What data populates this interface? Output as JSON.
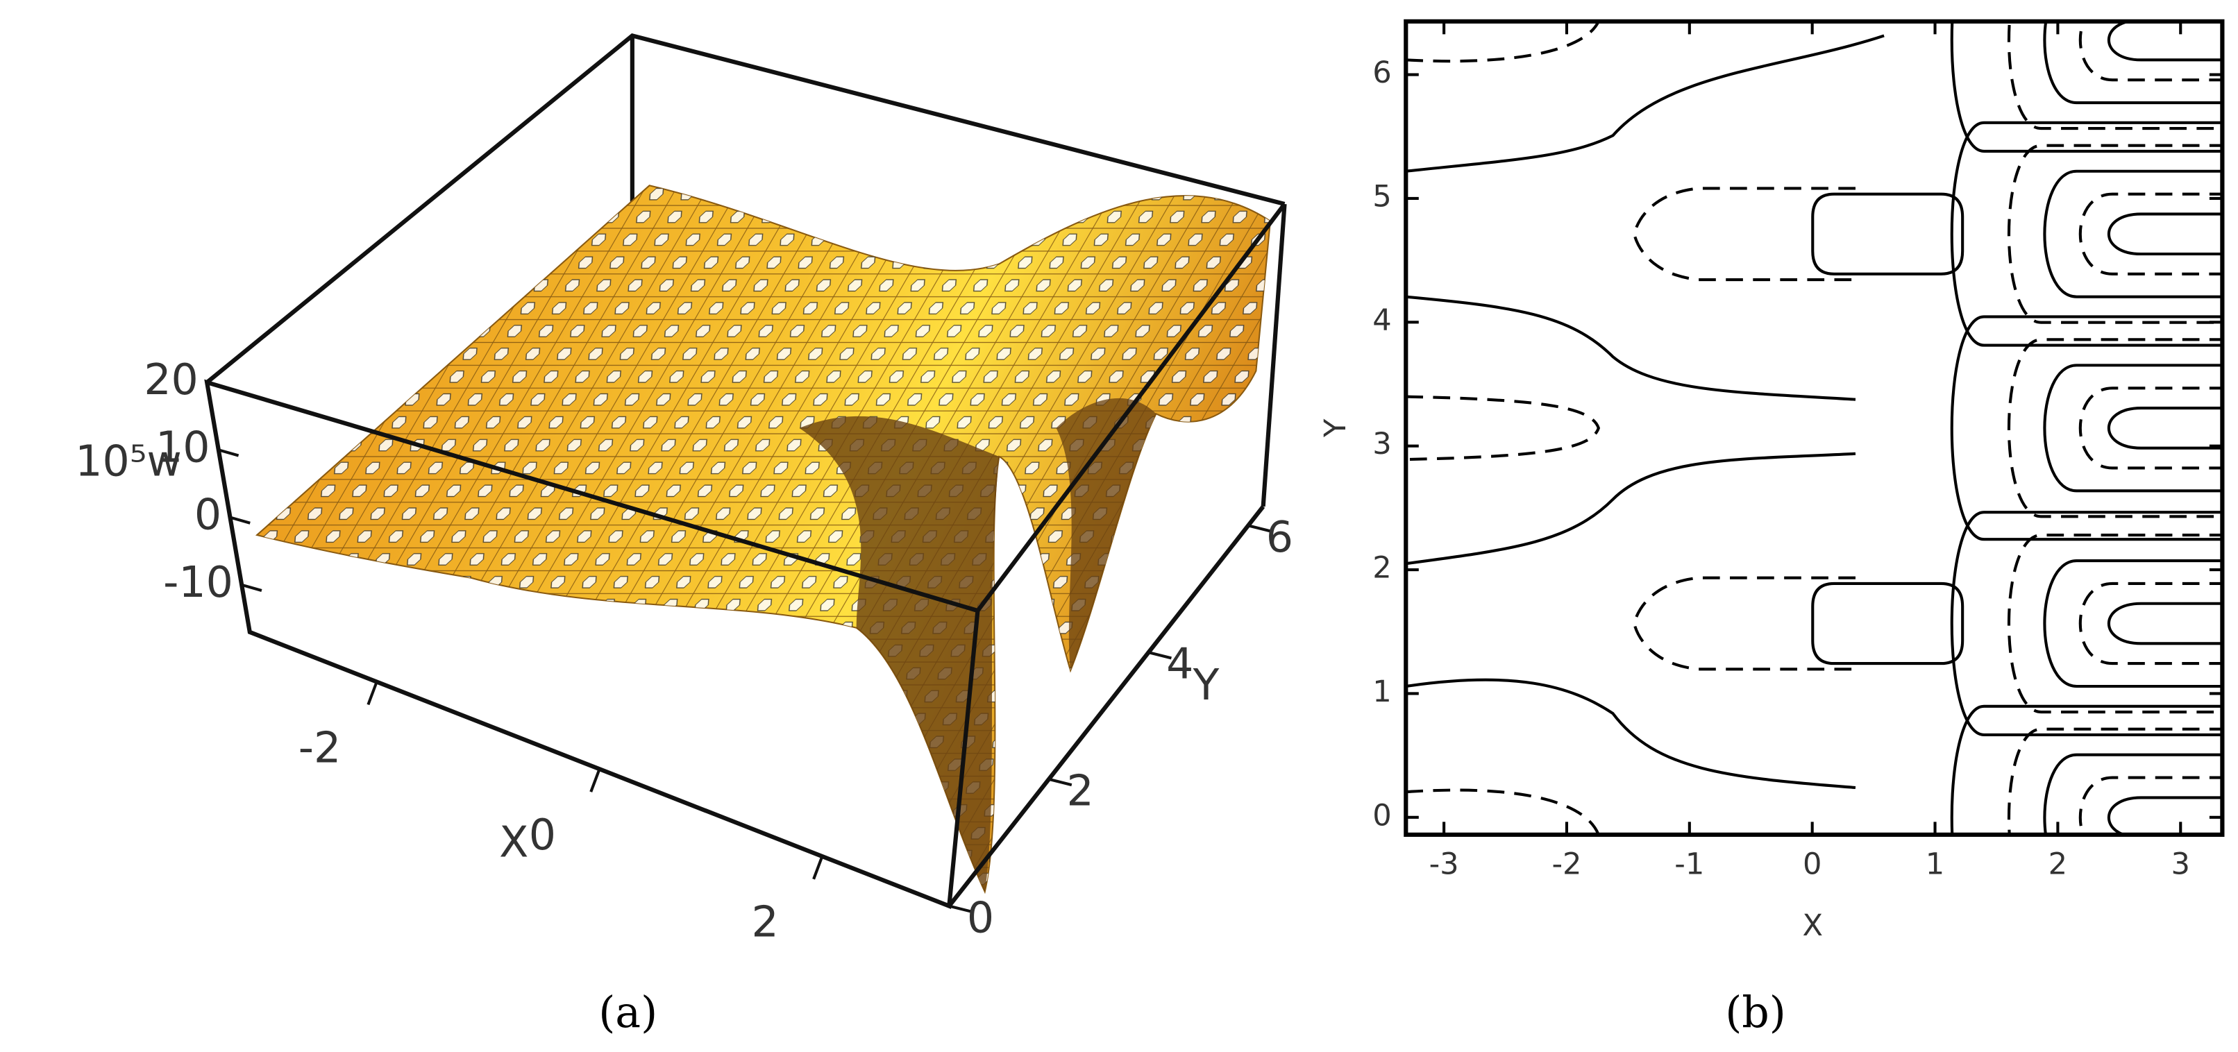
{
  "chart_data": [
    {
      "type": "surface3d",
      "caption": "(a)",
      "xlabel": "X",
      "ylabel": "Y",
      "zlabel": "10⁵w",
      "xlim": [
        -3.14,
        3.14
      ],
      "xticks": [
        -2,
        0,
        2
      ],
      "ylim": [
        0,
        6.3
      ],
      "yticks": [
        0,
        2,
        4,
        6
      ],
      "zlim": [
        -17,
        20
      ],
      "zticks": [
        -10,
        0,
        10,
        20
      ],
      "color": "#f0a020"
    },
    {
      "type": "contour",
      "caption": "(b)",
      "xlabel": "X",
      "ylabel": "Y",
      "xlim": [
        -3.31,
        3.34
      ],
      "xticks": [
        -3,
        -2,
        -1,
        0,
        1,
        2,
        3
      ],
      "ylim": [
        -0.14,
        6.43
      ],
      "yticks": [
        0,
        1,
        2,
        3,
        4,
        5,
        6
      ]
    }
  ]
}
